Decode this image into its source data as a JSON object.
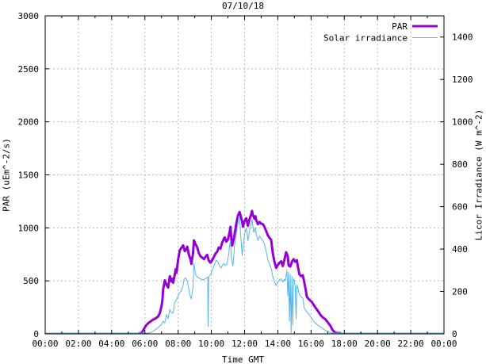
{
  "title": "07/10/18",
  "chart_data": {
    "type": "line",
    "title": "07/10/18",
    "xlabel": "Time GMT",
    "ylabel_left": "PAR (uEm^-2/s)",
    "ylabel_right": "Licor Irradiance (W m^-2)",
    "x_axis": {
      "unit": "hours GMT",
      "range": [
        0,
        24
      ],
      "major_tick_interval_hours": 2,
      "minor_tick_interval_hours": 1,
      "tick_labels": [
        "00:00",
        "02:00",
        "04:00",
        "06:00",
        "08:00",
        "10:00",
        "12:00",
        "14:00",
        "16:00",
        "18:00",
        "20:00",
        "22:00",
        "00:00"
      ]
    },
    "y_left_axis": {
      "label": "PAR (uEm^-2/s)",
      "range": [
        0,
        3000
      ],
      "ticks": [
        0,
        500,
        1000,
        1500,
        2000,
        2500,
        3000
      ]
    },
    "y_right_axis": {
      "label": "Licor Irradiance (W m^-2)",
      "range": [
        0,
        1500
      ],
      "ticks": [
        0,
        200,
        400,
        600,
        800,
        1000,
        1200,
        1400
      ]
    },
    "grid": {
      "on": true,
      "color": "#b8b8b8",
      "dashed": true,
      "x_at_hours": [
        2,
        4,
        6,
        8,
        10,
        12,
        14,
        16,
        18,
        20,
        22
      ],
      "y_at_left_values": [
        500,
        1000,
        1500,
        2000,
        2500
      ]
    },
    "legend": {
      "position": "top-right-inside",
      "entries": [
        {
          "label": "PAR",
          "color": "#9400d3",
          "line_width": 3
        },
        {
          "label": "Solar irradiance",
          "color": "#56b4e9",
          "line_width": 1
        }
      ]
    },
    "colors": {
      "par": "#9400d3",
      "solar": "#56b4e9",
      "frame": "#000000",
      "grid": "#b8b8b8"
    },
    "series": [
      {
        "name": "PAR",
        "axis": "left",
        "color": "#9400d3",
        "line_width": 3,
        "points": [
          [
            5.7,
            0
          ],
          [
            5.8,
            8
          ],
          [
            5.9,
            35
          ],
          [
            6.0,
            62
          ],
          [
            6.1,
            85
          ],
          [
            6.2,
            100
          ],
          [
            6.35,
            118
          ],
          [
            6.5,
            135
          ],
          [
            6.65,
            147
          ],
          [
            6.8,
            165
          ],
          [
            6.9,
            195
          ],
          [
            7.0,
            262
          ],
          [
            7.05,
            312
          ],
          [
            7.1,
            420
          ],
          [
            7.2,
            505
          ],
          [
            7.3,
            462
          ],
          [
            7.4,
            438
          ],
          [
            7.5,
            545
          ],
          [
            7.6,
            495
          ],
          [
            7.65,
            520
          ],
          [
            7.7,
            482
          ],
          [
            7.8,
            560
          ],
          [
            7.85,
            610
          ],
          [
            7.9,
            575
          ],
          [
            8.0,
            700
          ],
          [
            8.1,
            790
          ],
          [
            8.2,
            812
          ],
          [
            8.3,
            835
          ],
          [
            8.4,
            780
          ],
          [
            8.5,
            800
          ],
          [
            8.55,
            822
          ],
          [
            8.65,
            745
          ],
          [
            8.75,
            700
          ],
          [
            8.8,
            660
          ],
          [
            8.9,
            762
          ],
          [
            8.95,
            882
          ],
          [
            9.05,
            845
          ],
          [
            9.15,
            815
          ],
          [
            9.25,
            760
          ],
          [
            9.35,
            730
          ],
          [
            9.45,
            720
          ],
          [
            9.55,
            705
          ],
          [
            9.65,
            727
          ],
          [
            9.75,
            745
          ],
          [
            9.85,
            690
          ],
          [
            9.95,
            672
          ],
          [
            10.05,
            695
          ],
          [
            10.15,
            725
          ],
          [
            10.25,
            757
          ],
          [
            10.35,
            775
          ],
          [
            10.45,
            815
          ],
          [
            10.55,
            805
          ],
          [
            10.65,
            860
          ],
          [
            10.75,
            895
          ],
          [
            10.8,
            910
          ],
          [
            10.9,
            870
          ],
          [
            11.0,
            890
          ],
          [
            11.1,
            960
          ],
          [
            11.15,
            1010
          ],
          [
            11.2,
            900
          ],
          [
            11.25,
            832
          ],
          [
            11.35,
            900
          ],
          [
            11.45,
            990
          ],
          [
            11.5,
            1040
          ],
          [
            11.6,
            1115
          ],
          [
            11.7,
            1150
          ],
          [
            11.75,
            1120
          ],
          [
            11.85,
            1060
          ],
          [
            11.9,
            1010
          ],
          [
            12.0,
            1065
          ],
          [
            12.1,
            1090
          ],
          [
            12.15,
            1060
          ],
          [
            12.2,
            1020
          ],
          [
            12.3,
            1085
          ],
          [
            12.4,
            1130
          ],
          [
            12.45,
            1160
          ],
          [
            12.5,
            1120
          ],
          [
            12.6,
            1085
          ],
          [
            12.65,
            1110
          ],
          [
            12.7,
            1075
          ],
          [
            12.8,
            1035
          ],
          [
            12.9,
            1055
          ],
          [
            13.0,
            1040
          ],
          [
            13.1,
            1035
          ],
          [
            13.2,
            1010
          ],
          [
            13.3,
            970
          ],
          [
            13.4,
            930
          ],
          [
            13.5,
            905
          ],
          [
            13.6,
            888
          ],
          [
            13.7,
            760
          ],
          [
            13.8,
            680
          ],
          [
            13.9,
            622
          ],
          [
            14.0,
            650
          ],
          [
            14.1,
            670
          ],
          [
            14.2,
            685
          ],
          [
            14.3,
            640
          ],
          [
            14.4,
            700
          ],
          [
            14.5,
            770
          ],
          [
            14.6,
            730
          ],
          [
            14.65,
            645
          ],
          [
            14.75,
            635
          ],
          [
            14.85,
            680
          ],
          [
            14.95,
            705
          ],
          [
            15.05,
            680
          ],
          [
            15.15,
            695
          ],
          [
            15.2,
            640
          ],
          [
            15.3,
            560
          ],
          [
            15.4,
            545
          ],
          [
            15.5,
            552
          ],
          [
            15.55,
            520
          ],
          [
            15.65,
            440
          ],
          [
            15.75,
            350
          ],
          [
            15.85,
            330
          ],
          [
            15.95,
            315
          ],
          [
            16.05,
            300
          ],
          [
            16.15,
            275
          ],
          [
            16.25,
            250
          ],
          [
            16.4,
            220
          ],
          [
            16.55,
            182
          ],
          [
            16.7,
            156
          ],
          [
            16.85,
            140
          ],
          [
            17.0,
            110
          ],
          [
            17.15,
            80
          ],
          [
            17.3,
            35
          ],
          [
            17.45,
            12
          ],
          [
            17.6,
            3
          ],
          [
            17.75,
            0
          ]
        ]
      },
      {
        "name": "Solar irradiance",
        "axis": "right",
        "color": "#56b4e9",
        "line_width": 1,
        "points": [
          [
            0.0,
            0
          ],
          [
            1.0,
            0
          ],
          [
            2.0,
            0
          ],
          [
            3.0,
            0
          ],
          [
            4.0,
            0
          ],
          [
            5.0,
            0
          ],
          [
            5.8,
            0
          ],
          [
            6.2,
            2
          ],
          [
            6.4,
            8
          ],
          [
            6.6,
            18
          ],
          [
            6.8,
            30
          ],
          [
            7.0,
            45
          ],
          [
            7.1,
            60
          ],
          [
            7.2,
            52
          ],
          [
            7.3,
            90
          ],
          [
            7.4,
            72
          ],
          [
            7.5,
            115
          ],
          [
            7.6,
            100
          ],
          [
            7.7,
            98
          ],
          [
            7.8,
            150
          ],
          [
            7.9,
            160
          ],
          [
            8.0,
            180
          ],
          [
            8.1,
            195
          ],
          [
            8.2,
            205
          ],
          [
            8.3,
            230
          ],
          [
            8.35,
            256
          ],
          [
            8.45,
            265
          ],
          [
            8.55,
            248
          ],
          [
            8.65,
            210
          ],
          [
            8.7,
            185
          ],
          [
            8.8,
            165
          ],
          [
            8.9,
            225
          ],
          [
            8.95,
            332
          ],
          [
            9.05,
            280
          ],
          [
            9.15,
            268
          ],
          [
            9.3,
            262
          ],
          [
            9.45,
            255
          ],
          [
            9.6,
            258
          ],
          [
            9.7,
            265
          ],
          [
            9.78,
            268
          ],
          [
            9.8,
            35
          ],
          [
            9.85,
            270
          ],
          [
            9.95,
            278
          ],
          [
            10.1,
            310
          ],
          [
            10.2,
            330
          ],
          [
            10.3,
            348
          ],
          [
            10.4,
            338
          ],
          [
            10.5,
            320
          ],
          [
            10.6,
            310
          ],
          [
            10.65,
            322
          ],
          [
            10.75,
            332
          ],
          [
            10.85,
            322
          ],
          [
            10.95,
            330
          ],
          [
            11.05,
            380
          ],
          [
            11.1,
            420
          ],
          [
            11.15,
            440
          ],
          [
            11.2,
            360
          ],
          [
            11.3,
            320
          ],
          [
            11.4,
            420
          ],
          [
            11.5,
            470
          ],
          [
            11.6,
            520
          ],
          [
            11.65,
            556
          ],
          [
            11.7,
            545
          ],
          [
            11.75,
            480
          ],
          [
            11.8,
            430
          ],
          [
            11.85,
            370
          ],
          [
            11.95,
            440
          ],
          [
            12.0,
            470
          ],
          [
            12.1,
            500
          ],
          [
            12.15,
            480
          ],
          [
            12.2,
            440
          ],
          [
            12.3,
            490
          ],
          [
            12.4,
            520
          ],
          [
            12.45,
            540
          ],
          [
            12.5,
            510
          ],
          [
            12.55,
            480
          ],
          [
            12.65,
            500
          ],
          [
            12.7,
            470
          ],
          [
            12.8,
            440
          ],
          [
            12.9,
            460
          ],
          [
            13.0,
            450
          ],
          [
            13.1,
            440
          ],
          [
            13.2,
            420
          ],
          [
            13.3,
            390
          ],
          [
            13.4,
            350
          ],
          [
            13.5,
            330
          ],
          [
            13.6,
            310
          ],
          [
            13.7,
            270
          ],
          [
            13.8,
            245
          ],
          [
            13.9,
            228
          ],
          [
            14.0,
            245
          ],
          [
            14.1,
            255
          ],
          [
            14.2,
            260
          ],
          [
            14.3,
            245
          ],
          [
            14.4,
            258
          ],
          [
            14.45,
            250
          ],
          [
            14.55,
            300
          ],
          [
            14.6,
            180
          ],
          [
            14.65,
            290
          ],
          [
            14.7,
            60
          ],
          [
            14.75,
            280
          ],
          [
            14.8,
            5
          ],
          [
            14.85,
            270
          ],
          [
            14.9,
            40
          ],
          [
            14.95,
            260
          ],
          [
            15.0,
            250
          ],
          [
            15.05,
            220
          ],
          [
            15.1,
            70
          ],
          [
            15.15,
            230
          ],
          [
            15.2,
            220
          ],
          [
            15.25,
            200
          ],
          [
            15.3,
            185
          ],
          [
            15.4,
            175
          ],
          [
            15.5,
            168
          ],
          [
            15.6,
            120
          ],
          [
            15.7,
            108
          ],
          [
            15.8,
            100
          ],
          [
            15.9,
            90
          ],
          [
            16.0,
            78
          ],
          [
            16.1,
            65
          ],
          [
            16.2,
            55
          ],
          [
            16.3,
            48
          ],
          [
            16.45,
            38
          ],
          [
            16.6,
            30
          ],
          [
            16.75,
            22
          ],
          [
            16.9,
            15
          ],
          [
            17.05,
            9
          ],
          [
            17.2,
            5
          ],
          [
            17.35,
            2
          ],
          [
            17.5,
            0
          ],
          [
            18.0,
            0
          ],
          [
            19.0,
            0
          ],
          [
            20.0,
            0
          ],
          [
            21.0,
            0
          ],
          [
            22.0,
            0
          ],
          [
            23.0,
            0
          ],
          [
            24.0,
            0
          ]
        ]
      }
    ]
  }
}
